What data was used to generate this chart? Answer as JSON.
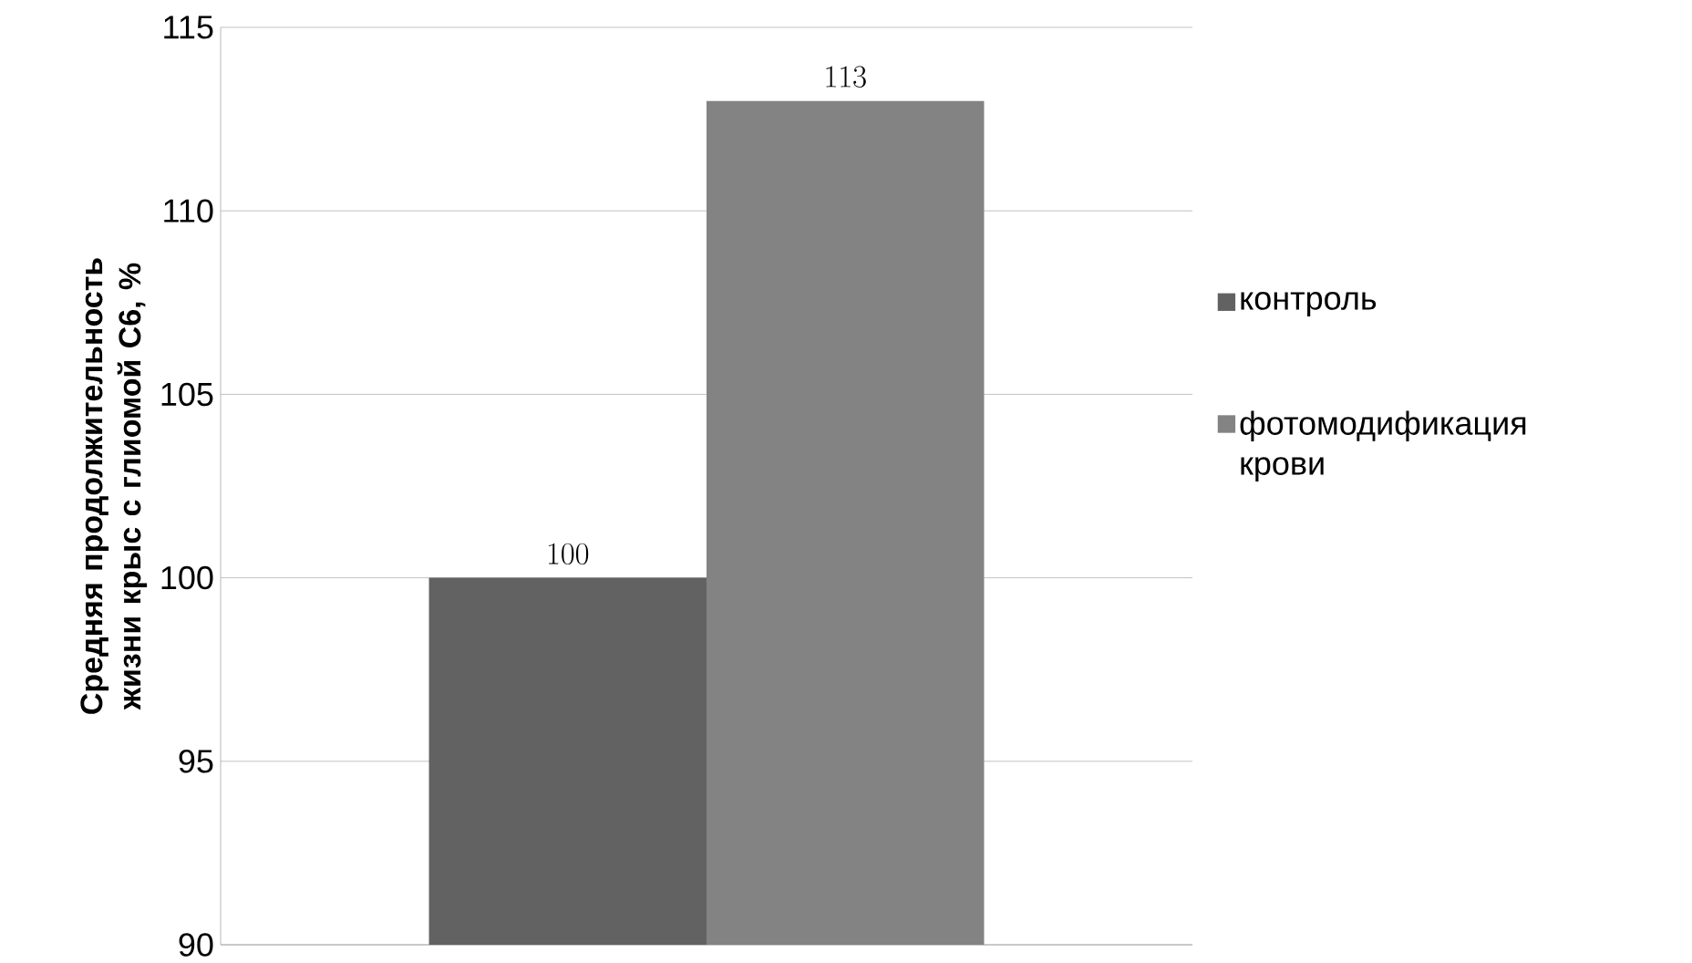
{
  "chart_data": {
    "type": "bar",
    "ylabel": "Средняя продолжительность жизни крыс с глиомой С6, %",
    "categories": [
      null
    ],
    "series": [
      {
        "name": "контроль",
        "color": "#626262",
        "values": [
          100
        ]
      },
      {
        "name": "фотомодификация крови",
        "color": "#838383",
        "values": [
          113
        ]
      }
    ],
    "ylim": [
      90,
      115
    ],
    "yticks": [
      90,
      95,
      100,
      105,
      110,
      115
    ],
    "grid": "y",
    "legend": "right",
    "data_labels": true
  }
}
